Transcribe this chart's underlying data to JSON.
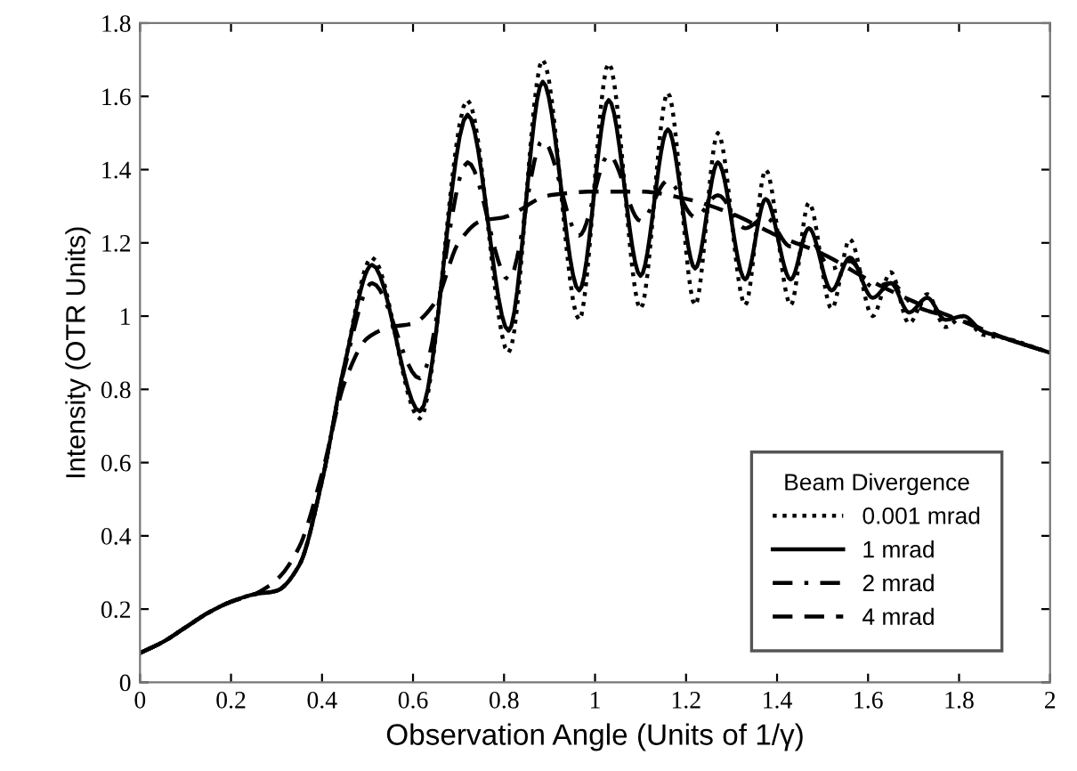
{
  "chart_data": {
    "type": "line",
    "xlabel": "Observation Angle (Units of 1/γ)",
    "ylabel": "Intensity (OTR Units)",
    "legend_title": "Beam Divergence",
    "legend": "bottom right",
    "grid": false,
    "xlim": [
      0,
      2
    ],
    "xticks": [
      0,
      0.2,
      0.4,
      0.6,
      0.8,
      1,
      1.2,
      1.4,
      1.6,
      1.8,
      2
    ],
    "ylim": [
      0,
      1.8
    ],
    "yticks": [
      0,
      0.2,
      0.4,
      0.6,
      0.8,
      1,
      1.2,
      1.4,
      1.6,
      1.8
    ],
    "series": [
      {
        "name": "0.001 mrad",
        "color": "#000000",
        "line_style": "dotted",
        "x": [
          0,
          0.05,
          0.1,
          0.15,
          0.2,
          0.25,
          0.3,
          0.35,
          0.4,
          0.45,
          0.51,
          0.615,
          0.72,
          0.81,
          0.885,
          0.965,
          1.03,
          1.1,
          1.16,
          1.22,
          1.27,
          1.33,
          1.375,
          1.43,
          1.47,
          1.52,
          1.56,
          1.61,
          1.65,
          1.69,
          1.73,
          1.77,
          1.81,
          1.85,
          1.9,
          2.0
        ],
        "values": [
          0.08,
          0.11,
          0.15,
          0.19,
          0.22,
          0.24,
          0.25,
          0.32,
          0.55,
          0.87,
          1.16,
          0.72,
          1.59,
          0.9,
          1.7,
          0.99,
          1.69,
          1.02,
          1.61,
          1.03,
          1.5,
          1.03,
          1.4,
          1.03,
          1.31,
          1.02,
          1.21,
          1.0,
          1.12,
          0.98,
          1.06,
          0.97,
          1.0,
          0.95,
          0.94,
          0.9
        ]
      },
      {
        "name": "1 mrad",
        "color": "#000000",
        "line_style": "solid",
        "x": [
          0,
          0.05,
          0.1,
          0.15,
          0.2,
          0.25,
          0.3,
          0.35,
          0.4,
          0.45,
          0.51,
          0.615,
          0.72,
          0.81,
          0.885,
          0.965,
          1.03,
          1.1,
          1.16,
          1.22,
          1.27,
          1.33,
          1.375,
          1.43,
          1.47,
          1.52,
          1.56,
          1.61,
          1.65,
          1.69,
          1.73,
          1.77,
          1.81,
          1.85,
          1.9,
          2.0
        ],
        "values": [
          0.08,
          0.11,
          0.15,
          0.19,
          0.22,
          0.24,
          0.25,
          0.32,
          0.55,
          0.87,
          1.14,
          0.74,
          1.55,
          0.96,
          1.64,
          1.07,
          1.59,
          1.11,
          1.51,
          1.13,
          1.42,
          1.1,
          1.32,
          1.1,
          1.24,
          1.07,
          1.16,
          1.05,
          1.09,
          1.01,
          1.05,
          0.99,
          1.0,
          0.96,
          0.94,
          0.9
        ]
      },
      {
        "name": "2 mrad",
        "color": "#000000",
        "line_style": "dashdot",
        "x": [
          0,
          0.05,
          0.1,
          0.15,
          0.2,
          0.25,
          0.3,
          0.35,
          0.4,
          0.45,
          0.51,
          0.615,
          0.72,
          0.81,
          0.885,
          0.965,
          1.03,
          1.1,
          1.16,
          1.22,
          1.27,
          1.33,
          1.375,
          1.43,
          1.47,
          1.52,
          1.56,
          1.61,
          1.65,
          1.7,
          1.8,
          1.9,
          2.0
        ],
        "values": [
          0.08,
          0.11,
          0.15,
          0.19,
          0.22,
          0.24,
          0.25,
          0.32,
          0.55,
          0.86,
          1.09,
          0.83,
          1.42,
          1.1,
          1.48,
          1.22,
          1.44,
          1.26,
          1.37,
          1.27,
          1.33,
          1.24,
          1.27,
          1.19,
          1.21,
          1.13,
          1.15,
          1.08,
          1.09,
          1.03,
          0.99,
          0.94,
          0.9
        ]
      },
      {
        "name": "4 mrad",
        "color": "#000000",
        "line_style": "dashed",
        "x": [
          0,
          0.05,
          0.1,
          0.15,
          0.2,
          0.25,
          0.3,
          0.35,
          0.4,
          0.45,
          0.5,
          0.55,
          0.6,
          0.65,
          0.7,
          0.75,
          0.8,
          0.9,
          1.0,
          1.1,
          1.2,
          1.3,
          1.4,
          1.5,
          1.6,
          1.7,
          1.8,
          1.9,
          2.0
        ],
        "values": [
          0.08,
          0.11,
          0.15,
          0.19,
          0.22,
          0.24,
          0.28,
          0.37,
          0.57,
          0.82,
          0.94,
          0.97,
          0.98,
          1.04,
          1.2,
          1.26,
          1.27,
          1.33,
          1.34,
          1.34,
          1.32,
          1.28,
          1.22,
          1.17,
          1.1,
          1.04,
          0.99,
          0.94,
          0.9
        ]
      }
    ]
  }
}
